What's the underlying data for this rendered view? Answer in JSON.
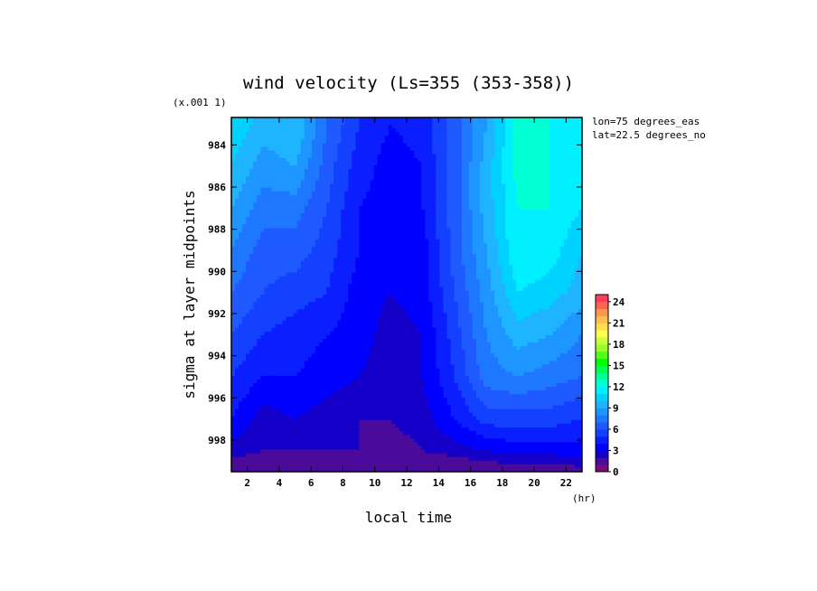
{
  "chart_data": {
    "type": "heatmap",
    "title": "wind velocity (Ls=355 (353-358))",
    "xlabel": "local time",
    "xunit": "(hr)",
    "ylabel": "sigma at layer midpoints",
    "yscale_note": "(x.001 1)",
    "annotations": [
      "lon=75 degrees_eas",
      "lat=22.5 degrees_no"
    ],
    "x_ticks": [
      "2",
      "4",
      "6",
      "8",
      "10",
      "12",
      "14",
      "16",
      "18",
      "20",
      "22"
    ],
    "y_ticks": [
      "984",
      "986",
      "988",
      "990",
      "992",
      "994",
      "996",
      "998"
    ],
    "xlim": [
      1,
      23
    ],
    "ylim": [
      999.5,
      982.7
    ],
    "x": [
      1,
      3,
      5,
      7,
      9,
      11,
      13,
      15,
      17,
      19,
      21,
      23
    ],
    "y": [
      983,
      985,
      987,
      989,
      991,
      993,
      995,
      997,
      998.5,
      999.3
    ],
    "z": [
      [
        11,
        9.5,
        10,
        7,
        5,
        4,
        4.5,
        6.5,
        9,
        12.5,
        12,
        11
      ],
      [
        10,
        8.5,
        9,
        6.5,
        4.5,
        3.5,
        4,
        6.5,
        9.5,
        12.5,
        12,
        11
      ],
      [
        9,
        7.5,
        7.5,
        6,
        4,
        3.5,
        4,
        6.5,
        9.5,
        12,
        12,
        11
      ],
      [
        8,
        6.5,
        6.5,
        5.5,
        4,
        3,
        3.5,
        6.5,
        9,
        12,
        11.5,
        10
      ],
      [
        7,
        6,
        5.5,
        5,
        3.5,
        3,
        3.5,
        6,
        8.5,
        11,
        10.5,
        9.5
      ],
      [
        6,
        5,
        4.5,
        4,
        3.5,
        2.5,
        3,
        5.5,
        8,
        9.5,
        9,
        8
      ],
      [
        5,
        4,
        4,
        3.5,
        3,
        2.5,
        3,
        5,
        7.5,
        8,
        7.5,
        7
      ],
      [
        4,
        2.5,
        3,
        2.5,
        2,
        2,
        2.5,
        4,
        5.5,
        5.5,
        5.5,
        5
      ],
      [
        2.5,
        2,
        2,
        2,
        2,
        1.5,
        2,
        2.5,
        3,
        3.5,
        3.5,
        3.5
      ],
      [
        1.5,
        1,
        1,
        1,
        1,
        1,
        1,
        1,
        1.5,
        1.5,
        1.5,
        2
      ]
    ],
    "colorbar": {
      "min": 0,
      "max": 25,
      "step": 1,
      "tick_labels": [
        "0",
        "3",
        "6",
        "9",
        "12",
        "15",
        "18",
        "21",
        "24"
      ],
      "colors": [
        "#7a0a7a",
        "#4a0a9a",
        "#1400c8",
        "#0000ff",
        "#0a1eff",
        "#1440ff",
        "#1e5aff",
        "#1e78ff",
        "#1e96ff",
        "#1eb4ff",
        "#00d2ff",
        "#00f0ff",
        "#00ffd2",
        "#00ff96",
        "#00ff50",
        "#00ff00",
        "#50ff1e",
        "#96ff28",
        "#c8ff3c",
        "#ffff50",
        "#ffdc50",
        "#ffbe50",
        "#ff9650",
        "#ff6450",
        "#ff3c5a"
      ]
    }
  }
}
